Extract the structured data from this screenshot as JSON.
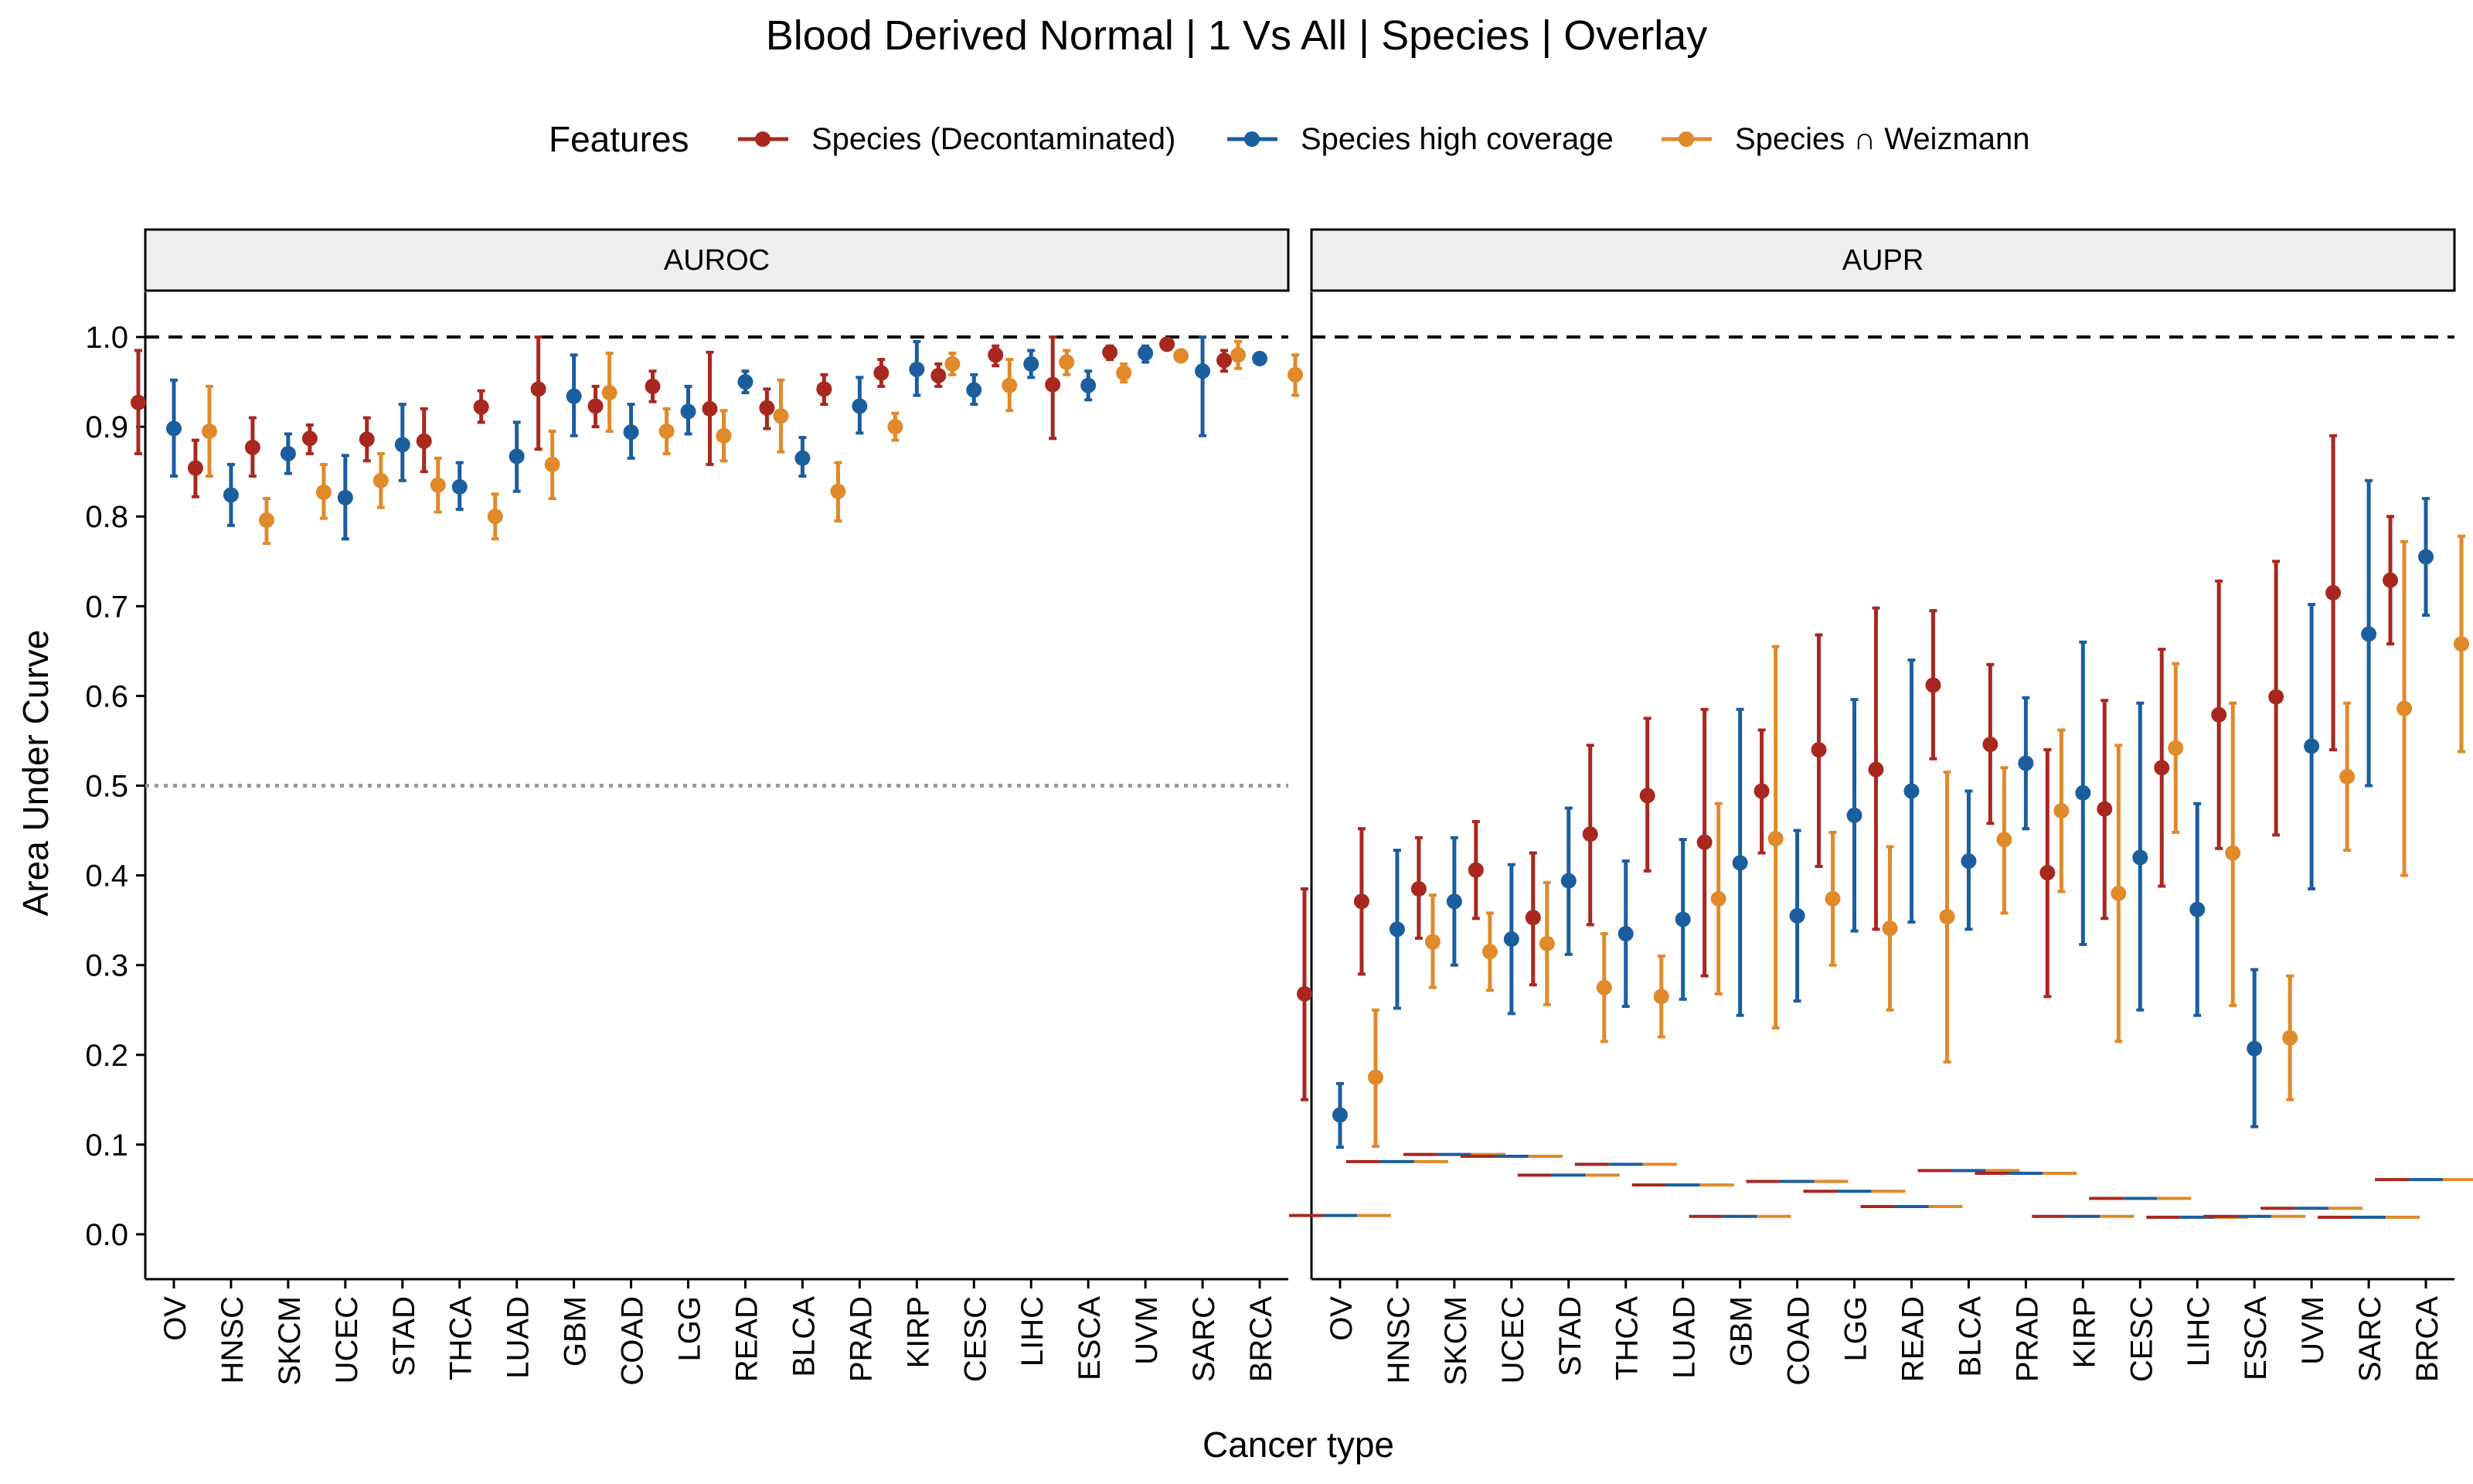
{
  "chart_data": {
    "type": "scatter",
    "title": "Blood Derived Normal | 1 Vs All | Species | Overlay",
    "xlabel": "Cancer type",
    "ylabel": "Area Under Curve",
    "ylim": [
      -0.05,
      1.05
    ],
    "yticks": [
      "0.0",
      "0.1",
      "0.2",
      "0.3",
      "0.4",
      "0.5",
      "0.6",
      "0.7",
      "0.8",
      "0.9",
      "1.0"
    ],
    "grid": false,
    "legend": {
      "title": "Features",
      "position": "top",
      "entries": [
        "Species (Decontaminated)",
        "Species high coverage",
        "Species ∩ Weizmann"
      ]
    },
    "colors": [
      "#a8281f",
      "#1b5e9e",
      "#e08a2a"
    ],
    "reference_lines": [
      {
        "y": 1.0,
        "style": "dashed",
        "color": "#000000"
      },
      {
        "y": 0.5,
        "style": "dotted",
        "color": "#999999",
        "panel": "AUROC"
      }
    ],
    "panels": [
      {
        "name": "AUROC",
        "categories": [
          "OV",
          "HNSC",
          "SKCM",
          "UCEC",
          "STAD",
          "THCA",
          "LUAD",
          "GBM",
          "COAD",
          "LGG",
          "READ",
          "BLCA",
          "PRAD",
          "KIRP",
          "CESC",
          "LIHC",
          "ESCA",
          "UVM",
          "SARC",
          "BRCA"
        ],
        "series": [
          {
            "name": "Species (Decontaminated)",
            "values": [
              0.927,
              0.854,
              0.877,
              0.887,
              0.886,
              0.884,
              0.922,
              0.942,
              0.923,
              0.945,
              0.92,
              0.921,
              0.942,
              0.96,
              0.957,
              0.98,
              0.947,
              0.983,
              0.992,
              0.974
            ],
            "lower": [
              0.87,
              0.822,
              0.845,
              0.87,
              0.862,
              0.85,
              0.905,
              0.875,
              0.9,
              0.928,
              0.858,
              0.898,
              0.925,
              0.945,
              0.945,
              0.968,
              0.887,
              0.975,
              0.988,
              0.962
            ],
            "upper": [
              0.985,
              0.885,
              0.91,
              0.902,
              0.91,
              0.92,
              0.94,
              1.0,
              0.945,
              0.962,
              0.983,
              0.942,
              0.958,
              0.975,
              0.97,
              0.99,
              1.0,
              0.99,
              0.997,
              0.985
            ]
          },
          {
            "name": "Species high coverage",
            "values": [
              0.898,
              0.824,
              0.87,
              0.821,
              0.88,
              0.833,
              0.867,
              0.934,
              0.894,
              0.917,
              0.95,
              0.865,
              0.923,
              0.964,
              0.941,
              0.97,
              0.946,
              0.982,
              0.962,
              0.976
            ],
            "lower": [
              0.845,
              0.79,
              0.848,
              0.775,
              0.84,
              0.808,
              0.828,
              0.89,
              0.865,
              0.892,
              0.938,
              0.845,
              0.893,
              0.935,
              0.925,
              0.955,
              0.93,
              0.972,
              0.89,
              0.972
            ],
            "upper": [
              0.952,
              0.858,
              0.892,
              0.868,
              0.925,
              0.86,
              0.905,
              0.98,
              0.925,
              0.945,
              0.962,
              0.888,
              0.955,
              0.995,
              0.958,
              0.985,
              0.962,
              0.99,
              1.0,
              0.98
            ]
          },
          {
            "name": "Species ∩ Weizmann",
            "values": [
              0.895,
              0.796,
              0.827,
              0.84,
              0.835,
              0.8,
              0.858,
              0.938,
              0.895,
              0.89,
              0.912,
              0.828,
              0.9,
              0.97,
              0.946,
              0.972,
              0.96,
              0.979,
              0.98,
              0.958
            ],
            "lower": [
              0.845,
              0.77,
              0.798,
              0.81,
              0.805,
              0.775,
              0.82,
              0.895,
              0.87,
              0.862,
              0.872,
              0.795,
              0.885,
              0.958,
              0.918,
              0.958,
              0.95,
              0.975,
              0.965,
              0.935
            ],
            "upper": [
              0.945,
              0.82,
              0.858,
              0.87,
              0.865,
              0.825,
              0.895,
              0.982,
              0.92,
              0.918,
              0.952,
              0.86,
              0.915,
              0.982,
              0.975,
              0.985,
              0.97,
              0.982,
              0.995,
              0.98
            ]
          }
        ]
      },
      {
        "name": "AUPR",
        "categories": [
          "OV",
          "HNSC",
          "SKCM",
          "UCEC",
          "STAD",
          "THCA",
          "LUAD",
          "GBM",
          "COAD",
          "LGG",
          "READ",
          "BLCA",
          "PRAD",
          "KIRP",
          "CESC",
          "LIHC",
          "ESCA",
          "UVM",
          "SARC",
          "BRCA"
        ],
        "series": [
          {
            "name": "Species (Decontaminated)",
            "values": [
              0.268,
              0.371,
              0.385,
              0.406,
              0.353,
              0.446,
              0.489,
              0.437,
              0.494,
              0.54,
              0.518,
              0.612,
              0.546,
              0.403,
              0.474,
              0.52,
              0.579,
              0.599,
              0.715,
              0.729
            ],
            "lower": [
              0.15,
              0.29,
              0.33,
              0.352,
              0.278,
              0.345,
              0.405,
              0.288,
              0.425,
              0.41,
              0.34,
              0.53,
              0.458,
              0.265,
              0.352,
              0.388,
              0.43,
              0.445,
              0.54,
              0.658
            ],
            "upper": [
              0.385,
              0.452,
              0.442,
              0.46,
              0.425,
              0.545,
              0.575,
              0.585,
              0.562,
              0.668,
              0.698,
              0.695,
              0.635,
              0.54,
              0.595,
              0.652,
              0.728,
              0.75,
              0.89,
              0.8
            ]
          },
          {
            "name": "Species high coverage",
            "values": [
              0.133,
              0.34,
              0.371,
              0.329,
              0.394,
              0.335,
              0.351,
              0.414,
              0.355,
              0.467,
              0.494,
              0.416,
              0.525,
              0.492,
              0.42,
              0.362,
              0.207,
              0.544,
              0.669,
              0.755
            ],
            "lower": [
              0.097,
              0.252,
              0.3,
              0.246,
              0.312,
              0.254,
              0.262,
              0.244,
              0.26,
              0.338,
              0.348,
              0.34,
              0.452,
              0.323,
              0.25,
              0.244,
              0.12,
              0.385,
              0.5,
              0.69
            ],
            "upper": [
              0.168,
              0.428,
              0.442,
              0.412,
              0.475,
              0.416,
              0.44,
              0.585,
              0.45,
              0.596,
              0.64,
              0.494,
              0.598,
              0.66,
              0.592,
              0.48,
              0.295,
              0.702,
              0.84,
              0.82
            ]
          },
          {
            "name": "Species ∩ Weizmann",
            "values": [
              0.175,
              0.326,
              0.315,
              0.324,
              0.275,
              0.265,
              0.374,
              0.441,
              0.374,
              0.341,
              0.354,
              0.44,
              0.472,
              0.38,
              0.542,
              0.425,
              0.219,
              0.51,
              0.586,
              0.658
            ],
            "lower": [
              0.098,
              0.275,
              0.272,
              0.256,
              0.215,
              0.22,
              0.268,
              0.23,
              0.3,
              0.25,
              0.192,
              0.358,
              0.382,
              0.215,
              0.448,
              0.255,
              0.15,
              0.428,
              0.4,
              0.538
            ],
            "upper": [
              0.25,
              0.378,
              0.358,
              0.392,
              0.335,
              0.31,
              0.48,
              0.655,
              0.448,
              0.432,
              0.515,
              0.52,
              0.562,
              0.545,
              0.636,
              0.592,
              0.288,
              0.592,
              0.772,
              0.778
            ]
          }
        ],
        "baselines": [
          0.021,
          0.081,
          0.089,
          0.087,
          0.066,
          0.078,
          0.055,
          0.02,
          0.059,
          0.048,
          0.031,
          0.071,
          0.068,
          0.02,
          0.04,
          0.019,
          0.02,
          0.029,
          0.019,
          0.061
        ]
      }
    ]
  }
}
